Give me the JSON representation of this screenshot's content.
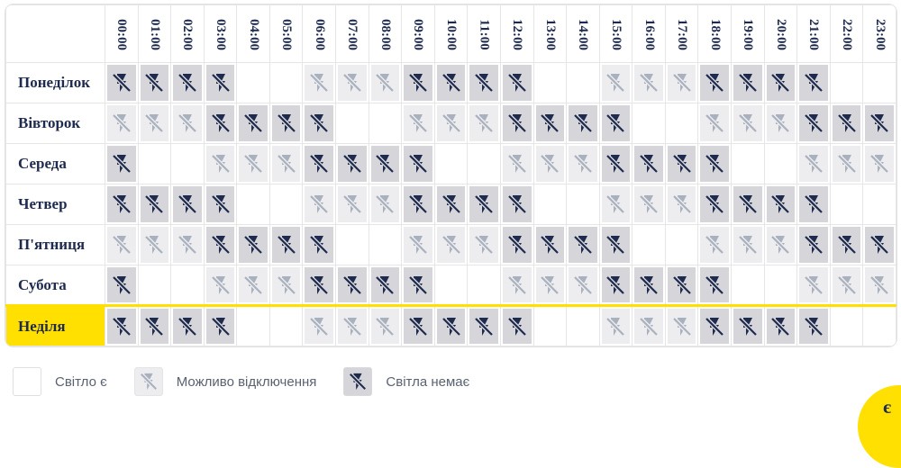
{
  "colors": {
    "navy": "#1e2a4e",
    "yellow": "#ffe000",
    "off_bg": "#d6d6da",
    "maybe_bg": "#ededef",
    "maybe_icon": "#a9b1bf",
    "grid_border": "#e6e6e9",
    "legend_text": "#5a6270"
  },
  "schedule": {
    "hours": [
      "00:00",
      "01:00",
      "02:00",
      "03:00",
      "04:00",
      "05:00",
      "06:00",
      "07:00",
      "08:00",
      "09:00",
      "10:00",
      "11:00",
      "12:00",
      "13:00",
      "14:00",
      "15:00",
      "16:00",
      "17:00",
      "18:00",
      "19:00",
      "20:00",
      "21:00",
      "22:00",
      "23:00"
    ],
    "state_legend": {
      "o": "light_on",
      "m": "possible_outage",
      "n": "no_light"
    },
    "days": [
      {
        "label": "Понеділок",
        "today": false,
        "cells": "nnnnoommmnnnnoommmnnnnoo"
      },
      {
        "label": "Вівторок",
        "today": false,
        "cells": "mmmnnnnoommmnnnnoommmnnn"
      },
      {
        "label": "Середа",
        "today": false,
        "cells": "noommmnnnnoommmnnnnoommm"
      },
      {
        "label": "Четвер",
        "today": false,
        "cells": "nnnnoommmnnnnoommmnnnnoo"
      },
      {
        "label": "П'ятниця",
        "today": false,
        "cells": "mmmnnnnoommmnnnnoommmnnn"
      },
      {
        "label": "Субота",
        "today": false,
        "cells": "noommmnnnnoommmnnnnoommm"
      },
      {
        "label": "Неділя",
        "today": true,
        "cells": "nnnnoommmnnnnoommmnnnnoo"
      }
    ]
  },
  "legend": [
    {
      "state": "o",
      "label": "Світло є"
    },
    {
      "state": "m",
      "label": "Можливо відключення"
    },
    {
      "state": "n",
      "label": "Світла немає"
    }
  ],
  "fab": {
    "label": "є"
  }
}
